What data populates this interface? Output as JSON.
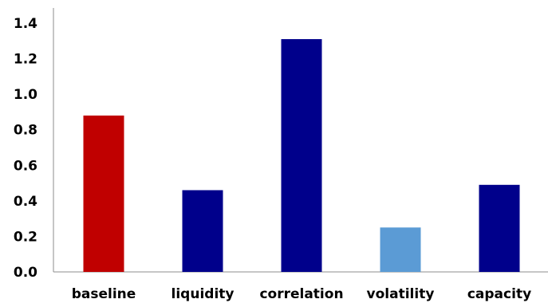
{
  "chart_data": {
    "type": "bar",
    "title": "",
    "xlabel": "",
    "ylabel": "",
    "categories": [
      "baseline",
      "liquidity",
      "correlation",
      "volatility",
      "capacity"
    ],
    "values": [
      0.88,
      0.46,
      1.31,
      0.25,
      0.49
    ],
    "bar_colors": [
      "#c00000",
      "#00008b",
      "#00008b",
      "#5b9bd5",
      "#00008b"
    ],
    "ylim": [
      0,
      1.4
    ],
    "yticks": [
      "0.0",
      "0.2",
      "0.4",
      "0.6",
      "0.8",
      "1.0",
      "1.2",
      "1.4"
    ],
    "ytick_values": [
      0,
      0.2,
      0.4,
      0.6,
      0.8,
      1.0,
      1.2,
      1.4
    ],
    "grid": false,
    "legend": "none"
  }
}
